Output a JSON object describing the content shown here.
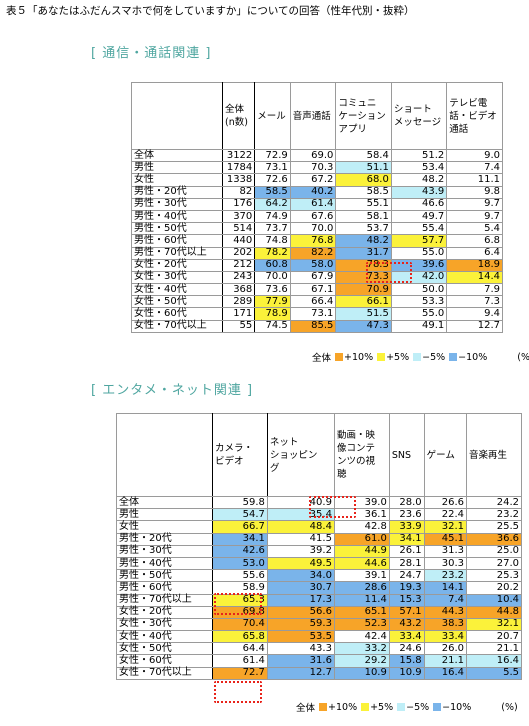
{
  "title": "表５「あなたはふだんスマホで何をしていますか」についての回答（性年代別・抜粋）",
  "legend": {
    "prefix": "全体",
    "items": [
      "+10%",
      "+5%",
      "−5%",
      "−10%"
    ],
    "unit": "(%)"
  },
  "colors": {
    "plus10": "#f7a428",
    "plus5": "#fbf23a",
    "minus5": "#bfeef7",
    "minus10": "#7ab4ea",
    "highlight": "#e8231a",
    "section": "#4fa6a0"
  },
  "tables": [
    {
      "section": "[ 通信・通話関連 ]",
      "columns": [
        "全体\n(n数)",
        "メール",
        "音声通話",
        "コミュニ\nケーション\nアプリ",
        "ショート\nメッセージ",
        "テレビ電\n話・ビデオ\n通話"
      ],
      "rows": [
        {
          "label": "全体",
          "cells": [
            [
              "3122",
              ""
            ],
            [
              "72.9",
              ""
            ],
            [
              "69.0",
              ""
            ],
            [
              "58.4",
              ""
            ],
            [
              "51.2",
              ""
            ],
            [
              "9.0",
              ""
            ]
          ]
        },
        {
          "label": "男性",
          "cells": [
            [
              "1784",
              ""
            ],
            [
              "73.1",
              ""
            ],
            [
              "70.3",
              ""
            ],
            [
              "51.1",
              "c"
            ],
            [
              "53.4",
              ""
            ],
            [
              "7.4",
              ""
            ]
          ]
        },
        {
          "label": "女性",
          "cells": [
            [
              "1338",
              ""
            ],
            [
              "72.6",
              ""
            ],
            [
              "67.2",
              ""
            ],
            [
              "68.0",
              "y"
            ],
            [
              "48.2",
              ""
            ],
            [
              "11.1",
              ""
            ]
          ]
        },
        {
          "label": "男性・20代",
          "cells": [
            [
              "82",
              ""
            ],
            [
              "58.5",
              "b"
            ],
            [
              "40.2",
              "b"
            ],
            [
              "58.5",
              ""
            ],
            [
              "43.9",
              "c"
            ],
            [
              "9.8",
              ""
            ]
          ]
        },
        {
          "label": "男性・30代",
          "cells": [
            [
              "176",
              ""
            ],
            [
              "64.2",
              "c"
            ],
            [
              "61.4",
              "c"
            ],
            [
              "55.1",
              ""
            ],
            [
              "46.6",
              ""
            ],
            [
              "9.7",
              ""
            ]
          ]
        },
        {
          "label": "男性・40代",
          "cells": [
            [
              "370",
              ""
            ],
            [
              "74.9",
              ""
            ],
            [
              "67.6",
              ""
            ],
            [
              "58.1",
              ""
            ],
            [
              "49.7",
              ""
            ],
            [
              "9.7",
              ""
            ]
          ]
        },
        {
          "label": "男性・50代",
          "cells": [
            [
              "514",
              ""
            ],
            [
              "73.7",
              ""
            ],
            [
              "70.0",
              ""
            ],
            [
              "53.7",
              ""
            ],
            [
              "55.4",
              ""
            ],
            [
              "5.4",
              ""
            ]
          ]
        },
        {
          "label": "男性・60代",
          "cells": [
            [
              "440",
              ""
            ],
            [
              "74.8",
              ""
            ],
            [
              "76.8",
              "y"
            ],
            [
              "48.2",
              "b"
            ],
            [
              "57.7",
              "y"
            ],
            [
              "6.8",
              ""
            ]
          ]
        },
        {
          "label": "男性・70代以上",
          "cells": [
            [
              "202",
              ""
            ],
            [
              "78.2",
              "y"
            ],
            [
              "82.2",
              "o"
            ],
            [
              "31.7",
              "b"
            ],
            [
              "55.0",
              ""
            ],
            [
              "6.4",
              ""
            ]
          ]
        },
        {
          "label": "女性・20代",
          "cells": [
            [
              "212",
              ""
            ],
            [
              "60.8",
              "b"
            ],
            [
              "58.0",
              "b"
            ],
            [
              "78.3",
              "o"
            ],
            [
              "39.6",
              "b"
            ],
            [
              "18.9",
              "o"
            ]
          ]
        },
        {
          "label": "女性・30代",
          "cells": [
            [
              "243",
              ""
            ],
            [
              "70.0",
              ""
            ],
            [
              "67.9",
              ""
            ],
            [
              "73.3",
              "o"
            ],
            [
              "42.0",
              "c"
            ],
            [
              "14.4",
              "y"
            ]
          ]
        },
        {
          "label": "女性・40代",
          "cells": [
            [
              "368",
              ""
            ],
            [
              "73.6",
              ""
            ],
            [
              "67.1",
              ""
            ],
            [
              "70.9",
              "o"
            ],
            [
              "50.0",
              ""
            ],
            [
              "7.9",
              ""
            ]
          ]
        },
        {
          "label": "女性・50代",
          "cells": [
            [
              "289",
              ""
            ],
            [
              "77.9",
              "y"
            ],
            [
              "66.4",
              ""
            ],
            [
              "66.1",
              "y"
            ],
            [
              "53.3",
              ""
            ],
            [
              "7.3",
              ""
            ]
          ]
        },
        {
          "label": "女性・60代",
          "cells": [
            [
              "171",
              ""
            ],
            [
              "78.9",
              "y"
            ],
            [
              "73.1",
              ""
            ],
            [
              "51.5",
              "c"
            ],
            [
              "55.0",
              ""
            ],
            [
              "9.4",
              ""
            ]
          ]
        },
        {
          "label": "女性・70代以上",
          "cells": [
            [
              "55",
              ""
            ],
            [
              "74.5",
              ""
            ],
            [
              "85.5",
              "o"
            ],
            [
              "47.3",
              "b"
            ],
            [
              "49.1",
              ""
            ],
            [
              "12.7",
              ""
            ]
          ]
        }
      ]
    },
    {
      "section": "[ エンタメ・ネット関連 ]",
      "columns": [
        "カメラ・\nビデオ",
        "ネット\nショッピン\nグ",
        "動画・映\n像コンテ\nンツの視\n聴",
        "SNS",
        "ゲーム",
        "音楽再生"
      ],
      "rows": [
        {
          "label": "全体",
          "cells": [
            [
              "59.8",
              ""
            ],
            [
              "40.9",
              ""
            ],
            [
              "39.0",
              ""
            ],
            [
              "28.0",
              ""
            ],
            [
              "26.6",
              ""
            ],
            [
              "24.2",
              ""
            ]
          ]
        },
        {
          "label": "男性",
          "cells": [
            [
              "54.7",
              "c"
            ],
            [
              "35.4",
              "c"
            ],
            [
              "36.1",
              ""
            ],
            [
              "23.6",
              ""
            ],
            [
              "22.4",
              ""
            ],
            [
              "23.2",
              ""
            ]
          ]
        },
        {
          "label": "女性",
          "cells": [
            [
              "66.7",
              "y"
            ],
            [
              "48.4",
              "y"
            ],
            [
              "42.8",
              ""
            ],
            [
              "33.9",
              "y"
            ],
            [
              "32.1",
              "y"
            ],
            [
              "25.5",
              ""
            ]
          ]
        },
        {
          "label": "男性・20代",
          "cells": [
            [
              "34.1",
              "b"
            ],
            [
              "41.5",
              ""
            ],
            [
              "61.0",
              "o"
            ],
            [
              "34.1",
              "y"
            ],
            [
              "45.1",
              "o"
            ],
            [
              "36.6",
              "o"
            ]
          ]
        },
        {
          "label": "男性・30代",
          "cells": [
            [
              "42.6",
              "b"
            ],
            [
              "39.2",
              ""
            ],
            [
              "44.9",
              "y"
            ],
            [
              "26.1",
              ""
            ],
            [
              "31.3",
              ""
            ],
            [
              "25.0",
              ""
            ]
          ]
        },
        {
          "label": "男性・40代",
          "cells": [
            [
              "53.0",
              "b"
            ],
            [
              "49.5",
              "y"
            ],
            [
              "44.6",
              "y"
            ],
            [
              "28.1",
              ""
            ],
            [
              "30.3",
              ""
            ],
            [
              "27.0",
              ""
            ]
          ]
        },
        {
          "label": "男性・50代",
          "cells": [
            [
              "55.6",
              ""
            ],
            [
              "34.0",
              "b"
            ],
            [
              "39.1",
              ""
            ],
            [
              "24.7",
              ""
            ],
            [
              "23.2",
              "c"
            ],
            [
              "25.3",
              ""
            ]
          ]
        },
        {
          "label": "男性・60代",
          "cells": [
            [
              "58.9",
              ""
            ],
            [
              "30.7",
              "b"
            ],
            [
              "28.6",
              "b"
            ],
            [
              "19.3",
              "b"
            ],
            [
              "14.1",
              "b"
            ],
            [
              "20.2",
              ""
            ]
          ]
        },
        {
          "label": "男性・70代以上",
          "cells": [
            [
              "65.3",
              "y"
            ],
            [
              "17.3",
              "b"
            ],
            [
              "11.4",
              "b"
            ],
            [
              "15.3",
              "b"
            ],
            [
              "7.4",
              "b"
            ],
            [
              "10.4",
              "b"
            ]
          ]
        },
        {
          "label": "女性・20代",
          "cells": [
            [
              "69.8",
              "o"
            ],
            [
              "56.6",
              "o"
            ],
            [
              "65.1",
              "o"
            ],
            [
              "57.1",
              "o"
            ],
            [
              "44.3",
              "o"
            ],
            [
              "44.8",
              "o"
            ]
          ]
        },
        {
          "label": "女性・30代",
          "cells": [
            [
              "70.4",
              "o"
            ],
            [
              "59.3",
              "o"
            ],
            [
              "52.3",
              "o"
            ],
            [
              "43.2",
              "o"
            ],
            [
              "38.3",
              "o"
            ],
            [
              "32.1",
              "y"
            ]
          ]
        },
        {
          "label": "女性・40代",
          "cells": [
            [
              "65.8",
              "y"
            ],
            [
              "53.5",
              "o"
            ],
            [
              "42.4",
              ""
            ],
            [
              "33.4",
              "y"
            ],
            [
              "33.4",
              "y"
            ],
            [
              "20.7",
              ""
            ]
          ]
        },
        {
          "label": "女性・50代",
          "cells": [
            [
              "64.4",
              ""
            ],
            [
              "43.3",
              ""
            ],
            [
              "33.2",
              "c"
            ],
            [
              "24.6",
              ""
            ],
            [
              "26.0",
              ""
            ],
            [
              "21.1",
              ""
            ]
          ]
        },
        {
          "label": "女性・60代",
          "cells": [
            [
              "61.4",
              ""
            ],
            [
              "31.6",
              "b"
            ],
            [
              "29.2",
              "c"
            ],
            [
              "15.8",
              "b"
            ],
            [
              "21.1",
              "c"
            ],
            [
              "16.4",
              "c"
            ]
          ]
        },
        {
          "label": "女性・70代以上",
          "cells": [
            [
              "72.7",
              "o"
            ],
            [
              "12.7",
              "b"
            ],
            [
              "10.9",
              "b"
            ],
            [
              "10.9",
              "b"
            ],
            [
              "16.4",
              "b"
            ],
            [
              "5.5",
              "b"
            ]
          ]
        }
      ]
    }
  ]
}
